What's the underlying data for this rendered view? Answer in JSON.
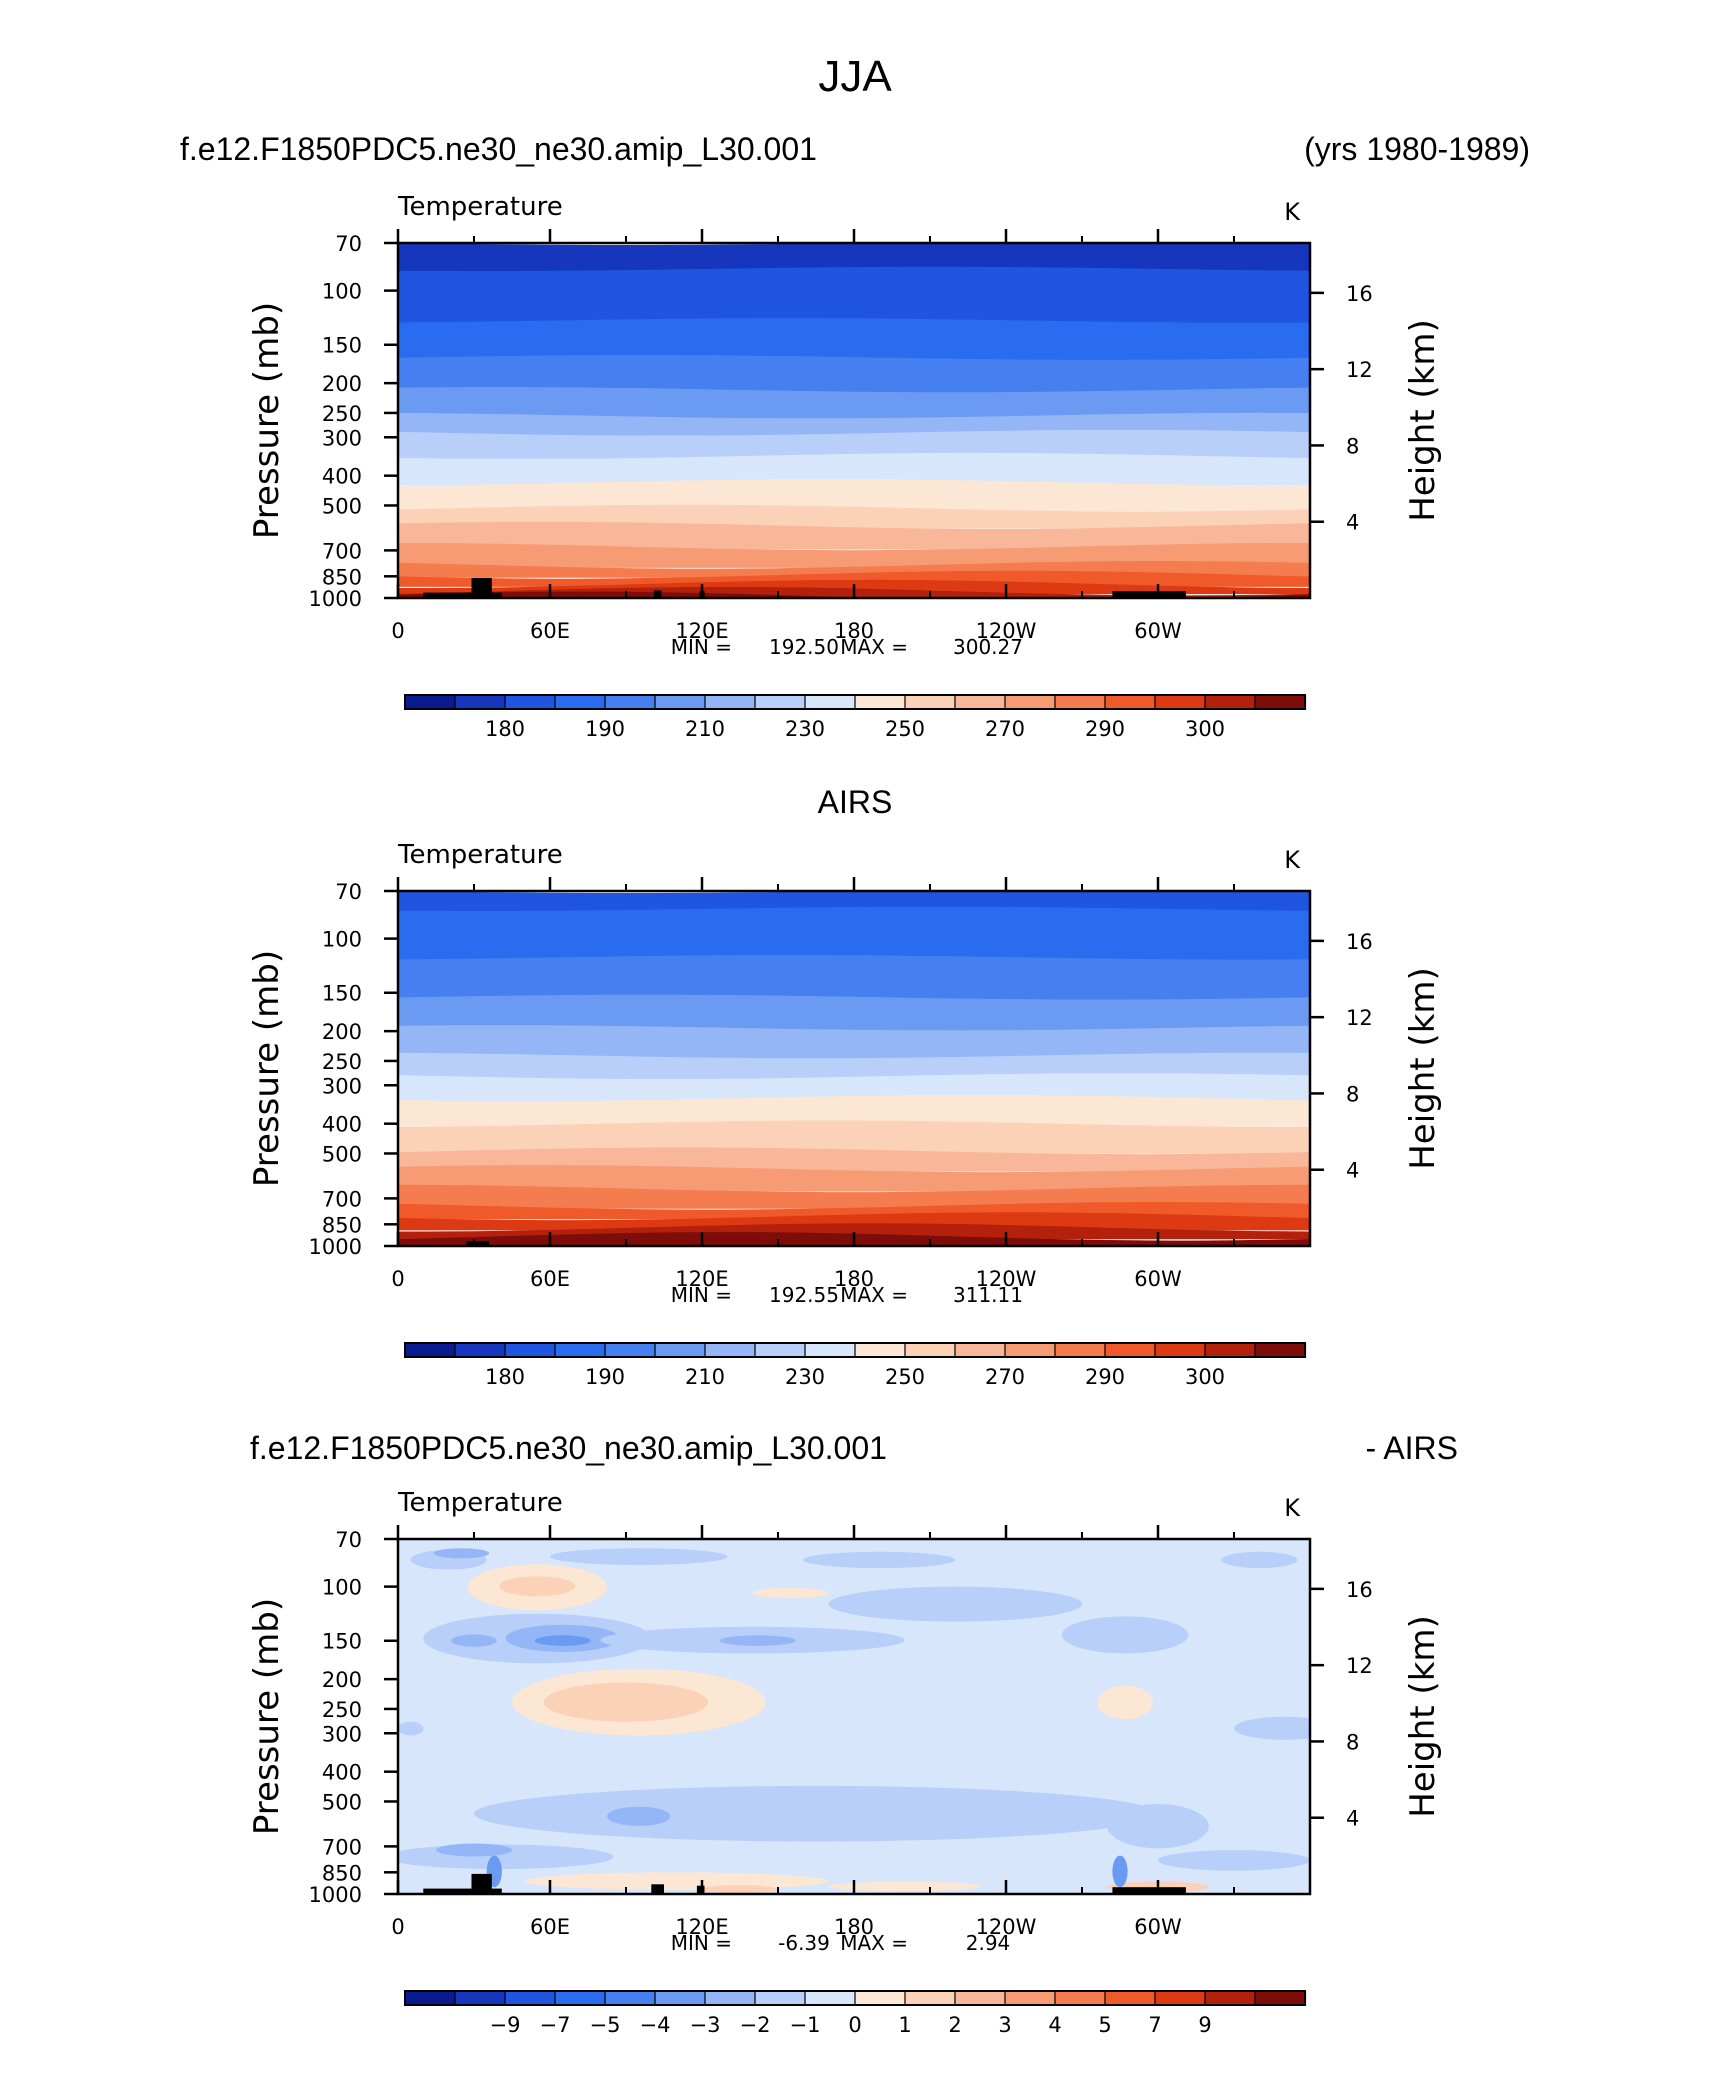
{
  "figure": {
    "title": "JJA",
    "case_name": "f.e12.F1850PDC5.ne30_ne30.amip_L30.001",
    "years": "(yrs 1980-1989)",
    "obs_name": "AIRS",
    "diff_name": "f.e12.F1850PDC5.ne30_ne30.amip_L30.001",
    "diff_suffix": "- AIRS"
  },
  "colors": {
    "temp_scale": [
      "#0a1a8f",
      "#1536bd",
      "#1f55e0",
      "#2a6cef",
      "#4680f0",
      "#6b9af3",
      "#94b6f6",
      "#b7cff9",
      "#d7e6fb",
      "#fbe7d4",
      "#fbd2b8",
      "#f9b79a",
      "#f79b74",
      "#f47c4f",
      "#f05a2a",
      "#dd3a13",
      "#b3200c",
      "#7e0d0a"
    ],
    "diff_scale": [
      "#0a1a8f",
      "#1536bd",
      "#1f55e0",
      "#2a6cef",
      "#4680f0",
      "#6b9af3",
      "#94b6f6",
      "#b7cff9",
      "#d7e6fb",
      "#fbe7d4",
      "#fbd2b8",
      "#f9b79a",
      "#f79b74",
      "#f47c4f",
      "#f05a2a",
      "#dd3a13",
      "#b3200c",
      "#7e0d0a"
    ],
    "terrain": "#000000"
  },
  "chart_data": [
    {
      "type": "contour",
      "id": "model",
      "variable_label": "Temperature",
      "units": "K",
      "ylabel": "Pressure (mb)",
      "ylabel_right": "Height (km)",
      "xlabel": "",
      "x_ticks": [
        "0",
        "60E",
        "120E",
        "180",
        "120W",
        "60W"
      ],
      "x_tick_lons": [
        0,
        60,
        120,
        180,
        240,
        300
      ],
      "xlim": [
        0,
        360
      ],
      "y_ticks": [
        "70",
        "100",
        "150",
        "200",
        "250",
        "300",
        "400",
        "500",
        "700",
        "850",
        "1000"
      ],
      "y_tick_values": [
        70,
        100,
        150,
        200,
        250,
        300,
        400,
        500,
        700,
        850,
        1000
      ],
      "ylim": [
        70,
        1000
      ],
      "y_right_ticks": [
        "16",
        "12",
        "8",
        "4"
      ],
      "y_right_values": [
        16,
        12,
        8,
        4
      ],
      "min_label": "MIN =",
      "min_value": "192.50",
      "max_label": "MAX =",
      "max_value": "300.27",
      "levels": [
        175,
        180,
        185,
        190,
        200,
        210,
        220,
        230,
        240,
        250,
        260,
        270,
        280,
        285,
        290,
        295,
        300
      ],
      "colorbar_labels": [
        "180",
        "190",
        "210",
        "230",
        "250",
        "270",
        "290",
        "300"
      ],
      "colorbar_label_after": [
        1,
        3,
        5,
        7,
        9,
        11,
        13,
        15
      ],
      "band_bounds_p": [
        70,
        85,
        125,
        165,
        210,
        255,
        290,
        345,
        420,
        510,
        580,
        680,
        780,
        840,
        900,
        950,
        985,
        1000
      ],
      "band_colors": [
        2,
        3,
        4,
        5,
        6,
        7,
        8,
        9,
        10,
        11,
        12,
        13,
        14,
        15,
        16,
        17,
        18
      ]
    },
    {
      "type": "contour",
      "id": "obs",
      "variable_label": "Temperature",
      "units": "K",
      "ylabel": "Pressure (mb)",
      "ylabel_right": "Height (km)",
      "xlabel": "",
      "x_ticks": [
        "0",
        "60E",
        "120E",
        "180",
        "120W",
        "60W"
      ],
      "x_tick_lons": [
        0,
        60,
        120,
        180,
        240,
        300
      ],
      "xlim": [
        0,
        360
      ],
      "y_ticks": [
        "70",
        "100",
        "150",
        "200",
        "250",
        "300",
        "400",
        "500",
        "700",
        "850",
        "1000"
      ],
      "y_tick_values": [
        70,
        100,
        150,
        200,
        250,
        300,
        400,
        500,
        700,
        850,
        1000
      ],
      "ylim": [
        70,
        1000
      ],
      "y_right_ticks": [
        "16",
        "12",
        "8",
        "4"
      ],
      "y_right_values": [
        16,
        12,
        8,
        4
      ],
      "min_label": "MIN =",
      "min_value": "192.55",
      "max_label": "MAX =",
      "max_value": "311.11",
      "levels": [
        175,
        180,
        185,
        190,
        200,
        210,
        220,
        230,
        240,
        250,
        260,
        270,
        280,
        285,
        290,
        295,
        300
      ],
      "colorbar_labels": [
        "180",
        "190",
        "210",
        "230",
        "250",
        "270",
        "290",
        "300"
      ],
      "colorbar_label_after": [
        1,
        3,
        5,
        7,
        9,
        11,
        13,
        15
      ],
      "band_bounds_p": [
        70,
        80,
        115,
        155,
        195,
        240,
        280,
        330,
        400,
        490,
        560,
        650,
        740,
        800,
        870,
        930,
        975,
        1000
      ],
      "band_colors": [
        3,
        4,
        5,
        6,
        7,
        8,
        9,
        10,
        11,
        12,
        13,
        14,
        15,
        16,
        17,
        18,
        19
      ]
    },
    {
      "type": "contour",
      "id": "diff",
      "variable_label": "Temperature",
      "units": "K",
      "ylabel": "Pressure (mb)",
      "ylabel_right": "Height (km)",
      "xlabel": "",
      "x_ticks": [
        "0",
        "60E",
        "120E",
        "180",
        "120W",
        "60W"
      ],
      "x_tick_lons": [
        0,
        60,
        120,
        180,
        240,
        300
      ],
      "xlim": [
        0,
        360
      ],
      "y_ticks": [
        "70",
        "100",
        "150",
        "200",
        "250",
        "300",
        "400",
        "500",
        "700",
        "850",
        "1000"
      ],
      "y_tick_values": [
        70,
        100,
        150,
        200,
        250,
        300,
        400,
        500,
        700,
        850,
        1000
      ],
      "ylim": [
        70,
        1000
      ],
      "y_right_ticks": [
        "16",
        "12",
        "8",
        "4"
      ],
      "y_right_values": [
        16,
        12,
        8,
        4
      ],
      "min_label": "MIN =",
      "min_value": "-6.39",
      "max_label": "MAX =",
      "max_value": "2.94",
      "levels": [
        -10,
        -9,
        -8,
        -7,
        -6,
        -5,
        -4,
        -3,
        -2,
        -1,
        0,
        1,
        2,
        3,
        4,
        5,
        7,
        9
      ],
      "colorbar_labels": [
        "−9",
        "−7",
        "−5",
        "−4",
        "−3",
        "−2",
        "−1",
        "0",
        "1",
        "2",
        "3",
        "4",
        "5",
        "7",
        "9"
      ],
      "colorbar_label_after": [
        1,
        2,
        3,
        4,
        5,
        6,
        7,
        8,
        9,
        10,
        11,
        12,
        13,
        14,
        15
      ],
      "background_color": 8,
      "features": [
        {
          "kind": "blob",
          "lon": 20,
          "lon_w": 30,
          "p": 82,
          "p_w": 12,
          "color": 7
        },
        {
          "kind": "blob",
          "lon": 25,
          "lon_w": 22,
          "p": 78,
          "p_w": 6,
          "color": 6
        },
        {
          "kind": "blob",
          "lon": 95,
          "lon_w": 70,
          "p": 80,
          "p_w": 10,
          "color": 7
        },
        {
          "kind": "blob",
          "lon": 190,
          "lon_w": 60,
          "p": 82,
          "p_w": 10,
          "color": 7
        },
        {
          "kind": "blob",
          "lon": 340,
          "lon_w": 30,
          "p": 82,
          "p_w": 10,
          "color": 7
        },
        {
          "kind": "blob",
          "lon": 55,
          "lon_w": 55,
          "p": 102,
          "p_w": 35,
          "color": 9
        },
        {
          "kind": "blob",
          "lon": 55,
          "lon_w": 30,
          "p": 100,
          "p_w": 15,
          "color": 10
        },
        {
          "kind": "blob",
          "lon": 155,
          "lon_w": 30,
          "p": 105,
          "p_w": 8,
          "color": 9
        },
        {
          "kind": "blob",
          "lon": 220,
          "lon_w": 100,
          "p": 115,
          "p_w": 30,
          "color": 7
        },
        {
          "kind": "blob",
          "lon": 55,
          "lon_w": 90,
          "p": 150,
          "p_w": 55,
          "color": 7
        },
        {
          "kind": "blob",
          "lon": 65,
          "lon_w": 45,
          "p": 148,
          "p_w": 30,
          "color": 6
        },
        {
          "kind": "blob",
          "lon": 65,
          "lon_w": 22,
          "p": 150,
          "p_w": 12,
          "color": 5
        },
        {
          "kind": "blob",
          "lon": 30,
          "lon_w": 18,
          "p": 150,
          "p_w": 14,
          "color": 6
        },
        {
          "kind": "blob",
          "lon": 140,
          "lon_w": 120,
          "p": 150,
          "p_w": 30,
          "color": 7
        },
        {
          "kind": "blob",
          "lon": 142,
          "lon_w": 30,
          "p": 150,
          "p_w": 12,
          "color": 6
        },
        {
          "kind": "blob",
          "lon": 287,
          "lon_w": 50,
          "p": 145,
          "p_w": 40,
          "color": 7
        },
        {
          "kind": "blob",
          "lon": 95,
          "lon_w": 100,
          "p": 245,
          "p_w": 120,
          "color": 9
        },
        {
          "kind": "blob",
          "lon": 90,
          "lon_w": 65,
          "p": 240,
          "p_w": 70,
          "color": 10
        },
        {
          "kind": "blob",
          "lon": 287,
          "lon_w": 22,
          "p": 240,
          "p_w": 60,
          "color": 9
        },
        {
          "kind": "blob",
          "lon": 350,
          "lon_w": 40,
          "p": 290,
          "p_w": 50,
          "color": 7
        },
        {
          "kind": "blob",
          "lon": 5,
          "lon_w": 10,
          "p": 290,
          "p_w": 30,
          "color": 7
        },
        {
          "kind": "blob",
          "lon": 165,
          "lon_w": 270,
          "p": 560,
          "p_w": 230,
          "color": 7
        },
        {
          "kind": "blob",
          "lon": 95,
          "lon_w": 25,
          "p": 560,
          "p_w": 80,
          "color": 6
        },
        {
          "kind": "blob",
          "lon": 300,
          "lon_w": 40,
          "p": 610,
          "p_w": 200,
          "color": 7
        },
        {
          "kind": "blob",
          "lon": 40,
          "lon_w": 90,
          "p": 760,
          "p_w": 140,
          "color": 7
        },
        {
          "kind": "blob",
          "lon": 30,
          "lon_w": 30,
          "p": 720,
          "p_w": 70,
          "color": 6
        },
        {
          "kind": "blob",
          "lon": 330,
          "lon_w": 60,
          "p": 780,
          "p_w": 120,
          "color": 7
        },
        {
          "kind": "blob",
          "lon": 110,
          "lon_w": 120,
          "p": 910,
          "p_w": 120,
          "color": 9
        },
        {
          "kind": "blob",
          "lon": 200,
          "lon_w": 60,
          "p": 945,
          "p_w": 70,
          "color": 9
        },
        {
          "kind": "blob",
          "lon": 135,
          "lon_w": 30,
          "p": 965,
          "p_w": 50,
          "color": 10
        },
        {
          "kind": "blob",
          "lon": 300,
          "lon_w": 40,
          "p": 950,
          "p_w": 80,
          "color": 10
        },
        {
          "kind": "blob",
          "lon": 285,
          "lon_w": 6,
          "p": 850,
          "p_w": 200,
          "color": 5
        },
        {
          "kind": "blob",
          "lon": 38,
          "lon_w": 6,
          "p": 850,
          "p_w": 200,
          "color": 5
        }
      ]
    }
  ],
  "terrain_blocks": {
    "model": [
      {
        "lon0": 10,
        "lon1": 41,
        "p0": 960
      },
      {
        "lon0": 29,
        "lon1": 37,
        "p0": 860
      },
      {
        "lon0": 101,
        "lon1": 104,
        "p0": 945
      },
      {
        "lon0": 119,
        "lon1": 121,
        "p0": 950
      },
      {
        "lon0": 282,
        "lon1": 311,
        "p0": 950
      }
    ],
    "obs": [
      {
        "lon0": 27,
        "lon1": 36,
        "p0": 965
      }
    ],
    "diff": [
      {
        "lon0": 10,
        "lon1": 41,
        "p0": 960
      },
      {
        "lon0": 29,
        "lon1": 37,
        "p0": 860
      },
      {
        "lon0": 100,
        "lon1": 105,
        "p0": 930
      },
      {
        "lon0": 118,
        "lon1": 121,
        "p0": 940
      },
      {
        "lon0": 282,
        "lon1": 311,
        "p0": 950
      }
    ]
  }
}
